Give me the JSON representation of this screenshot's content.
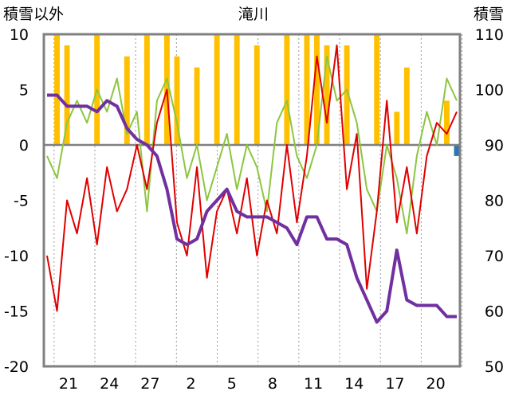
{
  "chart_data": {
    "type": "bar+line",
    "title": "滝川",
    "left_axis": {
      "label": "積雪以外",
      "range": [
        -20,
        10
      ],
      "ticks": [
        10,
        5,
        0,
        -5,
        -10,
        -15,
        -20
      ]
    },
    "right_axis": {
      "label": "積雪",
      "range": [
        50,
        110
      ],
      "ticks": [
        110,
        100,
        90,
        80,
        70,
        60,
        50
      ]
    },
    "x_tick_labels": [
      "21",
      "24",
      "27",
      "2",
      "5",
      "8",
      "11",
      "14",
      "17",
      "20"
    ],
    "grid": "vertical dotted",
    "colors": {
      "bar_positive": "#FFC000",
      "bar_negative": "#2E75B6",
      "line_red": "#E00000",
      "line_green": "#8CC63F",
      "line_purple": "#7030A0",
      "frame": "#808080"
    },
    "series": [
      {
        "name": "",
        "axis": "right",
        "color": "#7030A0",
        "x_index": [
          0,
          1,
          2,
          3,
          4,
          5,
          6,
          7,
          8,
          9,
          10,
          11,
          12,
          13,
          14,
          15,
          16,
          17,
          18,
          19,
          20,
          21,
          22,
          23,
          24,
          25,
          26,
          27,
          28,
          29,
          30,
          31,
          32,
          33,
          34,
          35,
          36,
          37,
          38,
          39,
          40,
          41
        ],
        "values": [
          99,
          99,
          97,
          97,
          97,
          96,
          98,
          97,
          93,
          91,
          90,
          88,
          82,
          73,
          72,
          73,
          78,
          80,
          82,
          78,
          77,
          77,
          77,
          76,
          75,
          72,
          77,
          77,
          73,
          73,
          72,
          66,
          62,
          58,
          60,
          71,
          62,
          61,
          61,
          61,
          59,
          59
        ]
      },
      {
        "name": "",
        "axis": "left",
        "color": "#E00000",
        "x_index": [
          0,
          1,
          2,
          3,
          4,
          5,
          6,
          7,
          8,
          9,
          10,
          11,
          12,
          13,
          14,
          15,
          16,
          17,
          18,
          19,
          20,
          21,
          22,
          23,
          24,
          25,
          26,
          27,
          28,
          29,
          30,
          31,
          32,
          33,
          34,
          35,
          36,
          37,
          38,
          39,
          40,
          41
        ],
        "values": [
          -10,
          -15,
          -5,
          -8,
          -3,
          -9,
          -2,
          -6,
          -4,
          0,
          -4,
          2,
          5,
          -7,
          -10,
          -2,
          -12,
          -6,
          -4,
          -8,
          -3,
          -10,
          -5,
          -8,
          0,
          -7,
          -1,
          8,
          2,
          9,
          -4,
          1,
          -13,
          -6,
          4,
          -7,
          -2,
          -8,
          -1,
          2,
          1,
          3
        ]
      },
      {
        "name": "",
        "axis": "left",
        "color": "#8CC63F",
        "x_index": [
          0,
          1,
          2,
          3,
          4,
          5,
          6,
          7,
          8,
          9,
          10,
          11,
          12,
          13,
          14,
          15,
          16,
          17,
          18,
          19,
          20,
          21,
          22,
          23,
          24,
          25,
          26,
          27,
          28,
          29,
          30,
          31,
          32,
          33,
          34,
          35,
          36,
          37,
          38,
          39,
          40,
          41
        ],
        "values": [
          -1,
          -3,
          2,
          4,
          2,
          5,
          3,
          6,
          1,
          3,
          -6,
          4,
          6,
          2,
          -3,
          0,
          -5,
          -2,
          1,
          -4,
          0,
          -2,
          -6,
          2,
          4,
          -1,
          -3,
          0,
          8,
          4,
          5,
          2,
          -4,
          -6,
          0,
          -3,
          -8,
          -1,
          3,
          0,
          6,
          4
        ]
      }
    ],
    "bars": {
      "axis": "left",
      "x_index": [
        1,
        2,
        5,
        8,
        10,
        12,
        13,
        15,
        17,
        19,
        21,
        24,
        26,
        27,
        28,
        30,
        33,
        35,
        36,
        40,
        41
      ],
      "values": [
        10,
        9,
        10,
        8,
        10,
        10,
        8,
        7,
        10,
        10,
        9,
        10,
        10,
        10,
        9,
        9,
        10,
        3,
        7,
        4,
        -1
      ]
    }
  }
}
